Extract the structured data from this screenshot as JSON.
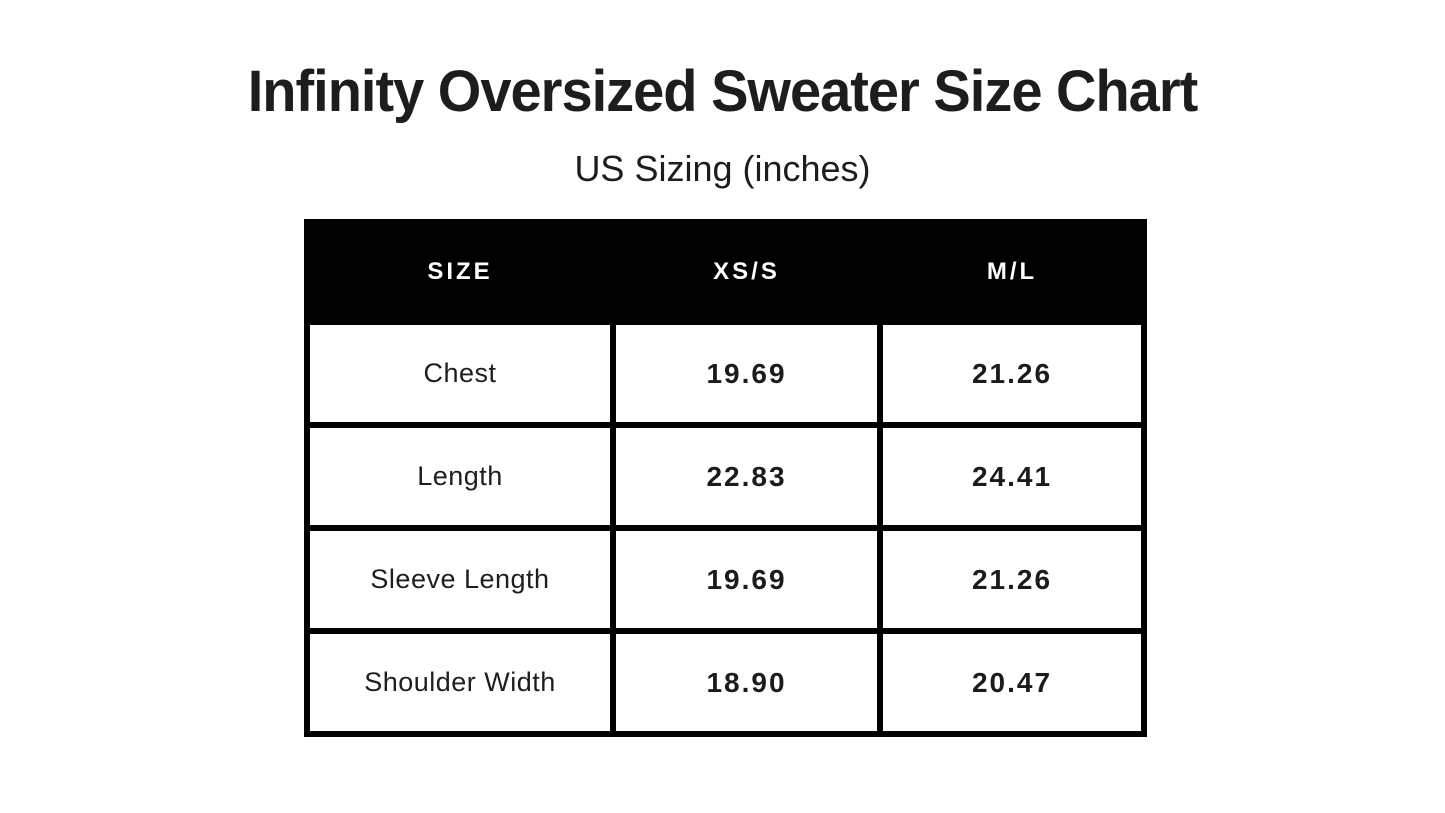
{
  "header": {
    "title": "Infinity Oversized Sweater Size Chart",
    "subtitle": "US Sizing (inches)"
  },
  "chart_data": {
    "type": "table",
    "title": "Infinity Oversized Sweater Size Chart",
    "subtitle": "US Sizing (inches)",
    "columns": [
      "SIZE",
      "XS/S",
      "M/L"
    ],
    "rows": [
      {
        "label": "Chest",
        "values": [
          "19.69",
          "21.26"
        ]
      },
      {
        "label": "Length",
        "values": [
          "22.83",
          "24.41"
        ]
      },
      {
        "label": "Sleeve Length",
        "values": [
          "19.69",
          "21.26"
        ]
      },
      {
        "label": "Shoulder Width",
        "values": [
          "18.90",
          "20.47"
        ]
      }
    ]
  },
  "colors": {
    "background": "#ffffff",
    "table_border": "#000000",
    "header_background": "#000000",
    "header_text": "#ffffff",
    "body_text": "#1e1e1e"
  }
}
